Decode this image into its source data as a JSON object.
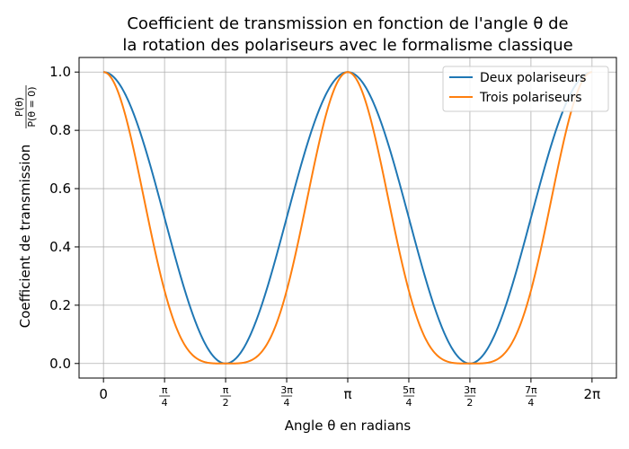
{
  "chart_data": {
    "type": "line",
    "title_lines": [
      "Coefficient de transmission en fonction de l'angle θ de",
      "la rotation des polariseurs avec le formalisme classique"
    ],
    "xlabel": "Angle θ en radians",
    "ylabel": "Coefficient de transmission",
    "ylabel_fraction": {
      "numerator": "P(θ)",
      "denominator": "P(θ = 0)"
    },
    "x_range": [
      "0",
      "2π"
    ],
    "xlim": [
      -0.314,
      6.597
    ],
    "ylim": [
      -0.05,
      1.05
    ],
    "x_ticks": [
      {
        "value": 0,
        "label": "0"
      },
      {
        "value": 0.7854,
        "num": "π",
        "den": "4"
      },
      {
        "value": 1.5708,
        "num": "π",
        "den": "2"
      },
      {
        "value": 2.3562,
        "num": "3π",
        "den": "4"
      },
      {
        "value": 3.1416,
        "label": "π"
      },
      {
        "value": 3.927,
        "num": "5π",
        "den": "4"
      },
      {
        "value": 4.7124,
        "num": "3π",
        "den": "2"
      },
      {
        "value": 5.4978,
        "num": "7π",
        "den": "4"
      },
      {
        "value": 6.2832,
        "label": "2π"
      }
    ],
    "y_ticks": [
      {
        "value": 0.0,
        "label": "0.0"
      },
      {
        "value": 0.2,
        "label": "0.2"
      },
      {
        "value": 0.4,
        "label": "0.4"
      },
      {
        "value": 0.6,
        "label": "0.6"
      },
      {
        "value": 0.8,
        "label": "0.8"
      },
      {
        "value": 1.0,
        "label": "1.0"
      }
    ],
    "grid": true,
    "legend_position": "top-right",
    "series": [
      {
        "name": "Deux polariseurs",
        "color": "#1f77b4",
        "formula": "cos²(θ)"
      },
      {
        "name": "Trois polariseurs",
        "color": "#ff7f0e",
        "formula": "cos⁴(θ)"
      }
    ]
  }
}
